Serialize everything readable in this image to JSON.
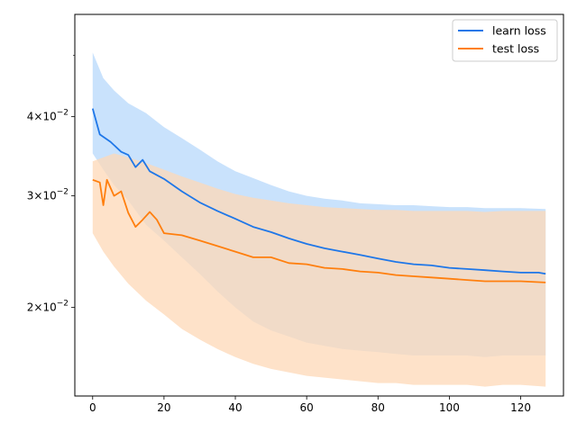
{
  "chart_data": {
    "type": "line",
    "title": "",
    "xlabel": "",
    "ylabel": "",
    "x_scale": "linear",
    "y_scale": "log",
    "xlim": [
      -5,
      132
    ],
    "ylim": [
      0.0145,
      0.058
    ],
    "x_ticks": [
      0,
      20,
      40,
      60,
      80,
      100,
      120
    ],
    "y_ticks": [
      {
        "value": 0.02,
        "mantissa": "2",
        "base": "10",
        "exponent": "−2"
      },
      {
        "value": 0.03,
        "mantissa": "3",
        "base": "10",
        "exponent": "−2"
      },
      {
        "value": 0.04,
        "mantissa": "4",
        "base": "10",
        "exponent": "−2"
      }
    ],
    "legend": "top-right",
    "grid": false,
    "series": [
      {
        "name": "learn loss",
        "color": "#1f77e8",
        "band_color": "#b7d8fb",
        "points": [
          [
            0,
            0.0412
          ],
          [
            2,
            0.0375
          ],
          [
            5,
            0.0365
          ],
          [
            8,
            0.0352
          ],
          [
            10,
            0.0348
          ],
          [
            12,
            0.0333
          ],
          [
            14,
            0.0342
          ],
          [
            16,
            0.0328
          ],
          [
            20,
            0.0319
          ],
          [
            25,
            0.0305
          ],
          [
            30,
            0.0293
          ],
          [
            35,
            0.0284
          ],
          [
            40,
            0.0276
          ],
          [
            45,
            0.0268
          ],
          [
            50,
            0.0263
          ],
          [
            55,
            0.0257
          ],
          [
            60,
            0.0252
          ],
          [
            65,
            0.0248
          ],
          [
            70,
            0.0245
          ],
          [
            75,
            0.0242
          ],
          [
            80,
            0.0239
          ],
          [
            85,
            0.0236
          ],
          [
            90,
            0.0234
          ],
          [
            95,
            0.0233
          ],
          [
            100,
            0.0231
          ],
          [
            105,
            0.023
          ],
          [
            110,
            0.0229
          ],
          [
            115,
            0.0228
          ],
          [
            120,
            0.0227
          ],
          [
            125,
            0.0227
          ],
          [
            127,
            0.0226
          ]
        ],
        "upper": [
          [
            0,
            0.0505
          ],
          [
            3,
            0.046
          ],
          [
            6,
            0.044
          ],
          [
            10,
            0.042
          ],
          [
            15,
            0.0405
          ],
          [
            20,
            0.0385
          ],
          [
            25,
            0.037
          ],
          [
            30,
            0.0355
          ],
          [
            35,
            0.034
          ],
          [
            40,
            0.0328
          ],
          [
            45,
            0.032
          ],
          [
            50,
            0.0312
          ],
          [
            55,
            0.0305
          ],
          [
            60,
            0.03
          ],
          [
            65,
            0.0297
          ],
          [
            70,
            0.0295
          ],
          [
            75,
            0.0292
          ],
          [
            80,
            0.0291
          ],
          [
            85,
            0.029
          ],
          [
            90,
            0.029
          ],
          [
            95,
            0.0289
          ],
          [
            100,
            0.0288
          ],
          [
            105,
            0.0288
          ],
          [
            110,
            0.0287
          ],
          [
            115,
            0.0287
          ],
          [
            120,
            0.0287
          ],
          [
            127,
            0.0286
          ]
        ],
        "lower": [
          [
            0,
            0.035
          ],
          [
            3,
            0.033
          ],
          [
            6,
            0.0312
          ],
          [
            10,
            0.0295
          ],
          [
            15,
            0.027
          ],
          [
            20,
            0.0255
          ],
          [
            25,
            0.024
          ],
          [
            30,
            0.0226
          ],
          [
            35,
            0.0212
          ],
          [
            40,
            0.02
          ],
          [
            45,
            0.019
          ],
          [
            50,
            0.0184
          ],
          [
            55,
            0.018
          ],
          [
            60,
            0.0176
          ],
          [
            65,
            0.0174
          ],
          [
            70,
            0.0172
          ],
          [
            75,
            0.0171
          ],
          [
            80,
            0.017
          ],
          [
            85,
            0.0169
          ],
          [
            90,
            0.0168
          ],
          [
            95,
            0.0168
          ],
          [
            100,
            0.0168
          ],
          [
            105,
            0.0168
          ],
          [
            110,
            0.0167
          ],
          [
            115,
            0.0168
          ],
          [
            120,
            0.0168
          ],
          [
            127,
            0.0168
          ]
        ]
      },
      {
        "name": "test loss",
        "color": "#ff7f0e",
        "band_color": "#fdd8b7",
        "points": [
          [
            0,
            0.0318
          ],
          [
            2,
            0.0315
          ],
          [
            3,
            0.029
          ],
          [
            4,
            0.0318
          ],
          [
            6,
            0.03
          ],
          [
            8,
            0.0305
          ],
          [
            10,
            0.0282
          ],
          [
            12,
            0.0268
          ],
          [
            14,
            0.0275
          ],
          [
            16,
            0.0283
          ],
          [
            18,
            0.0275
          ],
          [
            20,
            0.0262
          ],
          [
            25,
            0.026
          ],
          [
            30,
            0.0255
          ],
          [
            35,
            0.025
          ],
          [
            40,
            0.0245
          ],
          [
            45,
            0.024
          ],
          [
            50,
            0.024
          ],
          [
            55,
            0.0235
          ],
          [
            60,
            0.0234
          ],
          [
            65,
            0.0231
          ],
          [
            70,
            0.023
          ],
          [
            75,
            0.0228
          ],
          [
            80,
            0.0227
          ],
          [
            85,
            0.0225
          ],
          [
            90,
            0.0224
          ],
          [
            95,
            0.0223
          ],
          [
            100,
            0.0222
          ],
          [
            105,
            0.0221
          ],
          [
            110,
            0.022
          ],
          [
            115,
            0.022
          ],
          [
            120,
            0.022
          ],
          [
            127,
            0.0219
          ]
        ],
        "upper": [
          [
            0,
            0.034
          ],
          [
            3,
            0.0345
          ],
          [
            6,
            0.035
          ],
          [
            10,
            0.0345
          ],
          [
            15,
            0.0338
          ],
          [
            20,
            0.033
          ],
          [
            25,
            0.0322
          ],
          [
            30,
            0.0315
          ],
          [
            35,
            0.0308
          ],
          [
            40,
            0.0302
          ],
          [
            45,
            0.0298
          ],
          [
            50,
            0.0295
          ],
          [
            55,
            0.0292
          ],
          [
            60,
            0.029
          ],
          [
            65,
            0.0288
          ],
          [
            70,
            0.0287
          ],
          [
            75,
            0.0286
          ],
          [
            80,
            0.0285
          ],
          [
            85,
            0.0285
          ],
          [
            90,
            0.0284
          ],
          [
            95,
            0.0284
          ],
          [
            100,
            0.0284
          ],
          [
            105,
            0.0284
          ],
          [
            110,
            0.0283
          ],
          [
            115,
            0.0284
          ],
          [
            120,
            0.0284
          ],
          [
            127,
            0.0284
          ]
        ],
        "lower": [
          [
            0,
            0.0262
          ],
          [
            3,
            0.0245
          ],
          [
            6,
            0.0232
          ],
          [
            10,
            0.0218
          ],
          [
            15,
            0.0205
          ],
          [
            20,
            0.0195
          ],
          [
            25,
            0.0185
          ],
          [
            30,
            0.0178
          ],
          [
            35,
            0.0172
          ],
          [
            40,
            0.0167
          ],
          [
            45,
            0.0163
          ],
          [
            50,
            0.016
          ],
          [
            55,
            0.0158
          ],
          [
            60,
            0.0156
          ],
          [
            65,
            0.0155
          ],
          [
            70,
            0.0154
          ],
          [
            75,
            0.0153
          ],
          [
            80,
            0.0152
          ],
          [
            85,
            0.0152
          ],
          [
            90,
            0.0151
          ],
          [
            95,
            0.0151
          ],
          [
            100,
            0.0151
          ],
          [
            105,
            0.0151
          ],
          [
            110,
            0.015
          ],
          [
            115,
            0.0151
          ],
          [
            120,
            0.0151
          ],
          [
            127,
            0.015
          ]
        ]
      }
    ]
  }
}
